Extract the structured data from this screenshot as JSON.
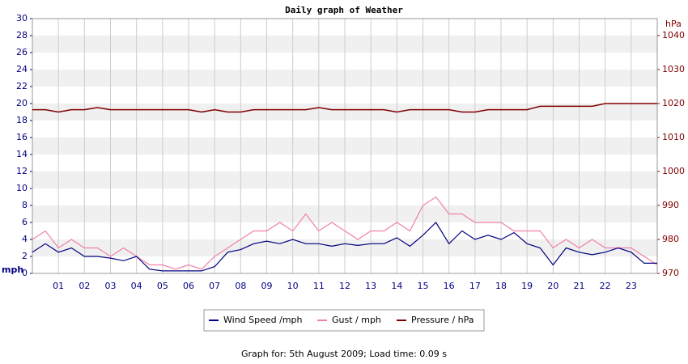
{
  "chart_data": {
    "type": "line",
    "title": "Daily graph of Weather",
    "y_label": "mph",
    "y2_label": "hPa",
    "footer": "Graph for: 5th August 2009; Load time: 0.09 s",
    "x": [
      0,
      0.5,
      1,
      1.5,
      2,
      2.5,
      3,
      3.5,
      4,
      4.5,
      5,
      5.5,
      6,
      6.5,
      7,
      7.5,
      8,
      8.5,
      9,
      9.5,
      10,
      10.5,
      11,
      11.5,
      12,
      12.5,
      13,
      13.5,
      14,
      14.5,
      15,
      15.5,
      16,
      16.5,
      17,
      17.5,
      18,
      18.5,
      19,
      19.5,
      20,
      20.5,
      21,
      21.5,
      22,
      22.5,
      23,
      23.5,
      24
    ],
    "xlim": [
      0,
      24
    ],
    "xticks": [
      {
        "value": 1,
        "label": "01"
      },
      {
        "value": 2,
        "label": "02"
      },
      {
        "value": 3,
        "label": "03"
      },
      {
        "value": 4,
        "label": "04"
      },
      {
        "value": 5,
        "label": "05"
      },
      {
        "value": 6,
        "label": "06"
      },
      {
        "value": 7,
        "label": "07"
      },
      {
        "value": 8,
        "label": "08"
      },
      {
        "value": 9,
        "label": "09"
      },
      10,
      11,
      12,
      13,
      14,
      15,
      16,
      17,
      18,
      19,
      20,
      21,
      22,
      23
    ],
    "ylim": [
      0,
      30
    ],
    "yticks": [
      0,
      2,
      4,
      6,
      8,
      10,
      12,
      14,
      16,
      18,
      20,
      22,
      24,
      26,
      28,
      30
    ],
    "y2lim": [
      970,
      1045
    ],
    "y2ticks": [
      970,
      980,
      990,
      1000,
      1010,
      1020,
      1030,
      1040
    ],
    "grid": true,
    "legend": "bottom",
    "series": [
      {
        "name": "Wind Speed /mph",
        "color": "#000080",
        "values": [
          2.5,
          3.5,
          2.5,
          3,
          2,
          2,
          1.8,
          1.5,
          2,
          0.5,
          0.3,
          0.3,
          0.3,
          0.3,
          0.8,
          2.5,
          2.8,
          3.5,
          3.8,
          3.5,
          4,
          3.5,
          3.5,
          3.2,
          3.5,
          3.3,
          3.5,
          3.5,
          4.2,
          3.2,
          4.5,
          6,
          3.5,
          5,
          4,
          4.5,
          4,
          4.8,
          3.5,
          3,
          1,
          3,
          2.5,
          2.2,
          2.5,
          3,
          2.5,
          1.2,
          1.2
        ]
      },
      {
        "name": "Gust / mph",
        "color": "#f080a8",
        "values": [
          4,
          5,
          3,
          4,
          3,
          3,
          2,
          3,
          2,
          1,
          1,
          0.5,
          1,
          0.5,
          2,
          3,
          4,
          5,
          5,
          6,
          5,
          7,
          5,
          6,
          5,
          4,
          5,
          5,
          6,
          5,
          8,
          9,
          7,
          7,
          6,
          6,
          6,
          5,
          5,
          5,
          3,
          4,
          3,
          4,
          3,
          3,
          3,
          2,
          1
        ]
      },
      {
        "name": "Pressure / hPa",
        "color": "#800000",
        "axis": "y2",
        "values": [
          1018.2,
          1018.2,
          1017.5,
          1018.2,
          1018.2,
          1018.8,
          1018.2,
          1018.2,
          1018.2,
          1018.2,
          1018.2,
          1018.2,
          1018.2,
          1017.5,
          1018.2,
          1017.5,
          1017.5,
          1018.2,
          1018.2,
          1018.2,
          1018.2,
          1018.2,
          1018.8,
          1018.2,
          1018.2,
          1018.2,
          1018.2,
          1018.2,
          1017.5,
          1018.2,
          1018.2,
          1018.2,
          1018.2,
          1017.5,
          1017.5,
          1018.2,
          1018.2,
          1018.2,
          1018.2,
          1019.2,
          1019.2,
          1019.2,
          1019.2,
          1019.2,
          1020,
          1020,
          1020,
          1020,
          1020
        ]
      }
    ]
  }
}
